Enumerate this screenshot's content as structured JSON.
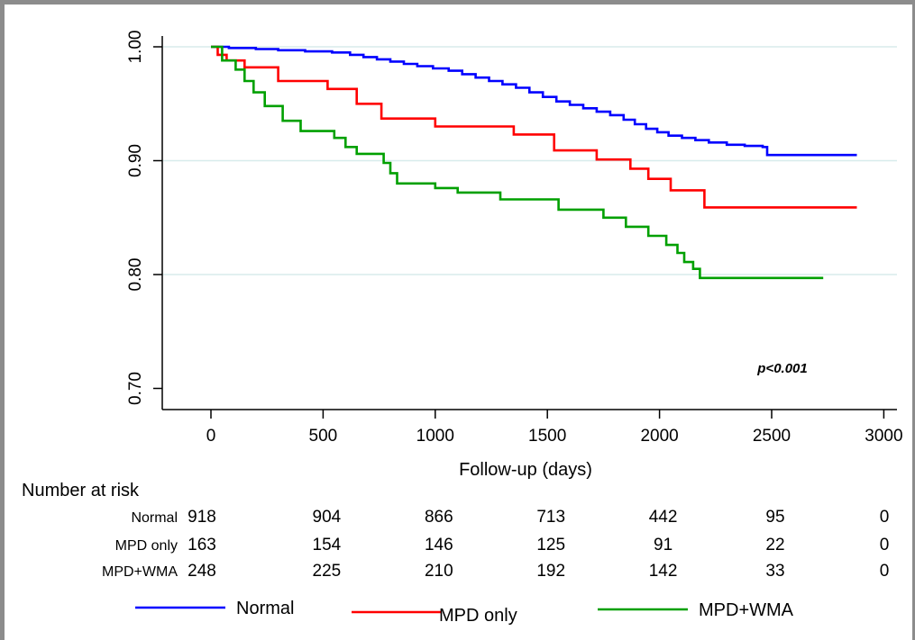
{
  "chart_data": {
    "type": "line",
    "subtype": "kaplan-meier",
    "xlabel": "Follow-up (days)",
    "ylabel": "",
    "xlim": [
      0,
      3000
    ],
    "ylim": [
      0.7,
      1.0
    ],
    "x_ticks": [
      "0",
      "500",
      "1000",
      "1500",
      "2000",
      "2500",
      "3000"
    ],
    "x_tick_values": [
      0,
      500,
      1000,
      1500,
      2000,
      2500,
      3000
    ],
    "y_ticks": [
      "0.70",
      "0.80",
      "0.90",
      "1.00"
    ],
    "y_tick_values": [
      0.7,
      0.8,
      0.9,
      1.0
    ],
    "grid": true,
    "annotation": "p<0.001",
    "legend_position": "bottom",
    "series": [
      {
        "name": "Normal",
        "color": "#0000ff",
        "x": [
          0,
          80,
          200,
          300,
          420,
          540,
          620,
          680,
          740,
          800,
          860,
          920,
          990,
          1060,
          1120,
          1180,
          1240,
          1300,
          1360,
          1420,
          1480,
          1540,
          1600,
          1660,
          1720,
          1780,
          1840,
          1890,
          1940,
          1990,
          2040,
          2100,
          2160,
          2220,
          2300,
          2380,
          2460,
          2480,
          2880
        ],
        "y": [
          1.0,
          0.999,
          0.998,
          0.997,
          0.996,
          0.995,
          0.993,
          0.991,
          0.989,
          0.987,
          0.985,
          0.983,
          0.981,
          0.979,
          0.976,
          0.973,
          0.97,
          0.967,
          0.964,
          0.96,
          0.956,
          0.952,
          0.949,
          0.946,
          0.943,
          0.94,
          0.936,
          0.932,
          0.928,
          0.925,
          0.922,
          0.92,
          0.918,
          0.916,
          0.914,
          0.913,
          0.912,
          0.905,
          0.905
        ]
      },
      {
        "name": "MPD only",
        "color": "#ff0000",
        "x": [
          0,
          30,
          70,
          150,
          300,
          520,
          650,
          760,
          1000,
          1350,
          1530,
          1720,
          1870,
          1950,
          2050,
          2200,
          2880
        ],
        "y": [
          1.0,
          0.993,
          0.988,
          0.982,
          0.97,
          0.963,
          0.95,
          0.937,
          0.93,
          0.923,
          0.909,
          0.901,
          0.893,
          0.884,
          0.874,
          0.859,
          0.859
        ]
      },
      {
        "name": "MPD+WMA",
        "color": "#00a000",
        "x": [
          0,
          50,
          110,
          150,
          190,
          240,
          320,
          400,
          550,
          600,
          650,
          770,
          800,
          830,
          1000,
          1100,
          1290,
          1550,
          1750,
          1850,
          1950,
          2030,
          2080,
          2110,
          2150,
          2180,
          2730
        ],
        "y": [
          1.0,
          0.988,
          0.98,
          0.97,
          0.96,
          0.948,
          0.935,
          0.926,
          0.92,
          0.912,
          0.906,
          0.898,
          0.889,
          0.88,
          0.876,
          0.872,
          0.866,
          0.857,
          0.85,
          0.842,
          0.834,
          0.826,
          0.819,
          0.811,
          0.805,
          0.797,
          0.797
        ]
      }
    ]
  },
  "risk_table": {
    "title": "Number at risk",
    "rows": [
      {
        "label": "Normal",
        "values": [
          "918",
          "904",
          "866",
          "713",
          "442",
          "95",
          "0"
        ]
      },
      {
        "label": "MPD only",
        "values": [
          "163",
          "154",
          "146",
          "125",
          "91",
          "22",
          "0"
        ]
      },
      {
        "label": "MPD+WMA",
        "values": [
          "248",
          "225",
          "210",
          "192",
          "142",
          "33",
          "0"
        ]
      }
    ]
  },
  "colors": {
    "annotation": "#4a5eff",
    "grid": "#d8ecec"
  }
}
